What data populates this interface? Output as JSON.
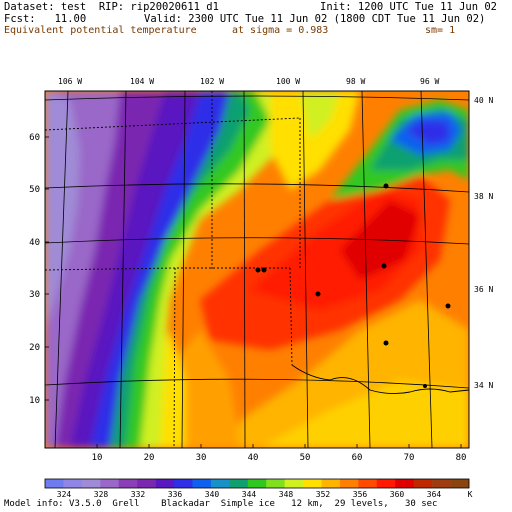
{
  "header": {
    "dataset": "Dataset: test  RIP: rip20020611 d1",
    "init": "Init: 1200 UTC Tue 11 Jun 02",
    "fcst": "Fcst:   11.00",
    "valid": "Valid: 2300 UTC Tue 11 Jun 02 (1800 CDT Tue 11 Jun 02)",
    "field": "Equivalent potential temperature",
    "sigma": "at sigma = 0.983",
    "sm": "sm= 1"
  },
  "map": {
    "lon_labels": [
      "106 W",
      "104 W",
      "102 W",
      "100 W",
      "98 W",
      "96 W"
    ],
    "lat_labels": [
      "40 N",
      "38 N",
      "36 N",
      "34 N"
    ],
    "grid_x_ticks": [
      "10",
      "20",
      "30",
      "40",
      "50",
      "60",
      "70",
      "80"
    ],
    "grid_y_ticks": [
      "10",
      "20",
      "30",
      "40",
      "50",
      "60"
    ]
  },
  "colorbar": {
    "labels": [
      "324",
      "328",
      "332",
      "336",
      "340",
      "344",
      "348",
      "352",
      "356",
      "360",
      "364"
    ],
    "unit": "K",
    "colors": [
      "#6e7cf0",
      "#8f86e8",
      "#a08bd6",
      "#9a68c8",
      "#8a3fb8",
      "#7a28b0",
      "#5a18c0",
      "#2f2fe8",
      "#1060f0",
      "#1890c8",
      "#10a070",
      "#30c820",
      "#80e020",
      "#d0f020",
      "#ffe000",
      "#ffb400",
      "#ff8000",
      "#ff4a00",
      "#ff1a00",
      "#e00000",
      "#c02800",
      "#a03a10",
      "#8a4410"
    ]
  },
  "footer": "Model info: V3.5.0  Grell    Blackadar  Simple ice   12 km,  29 levels,   30 sec"
}
